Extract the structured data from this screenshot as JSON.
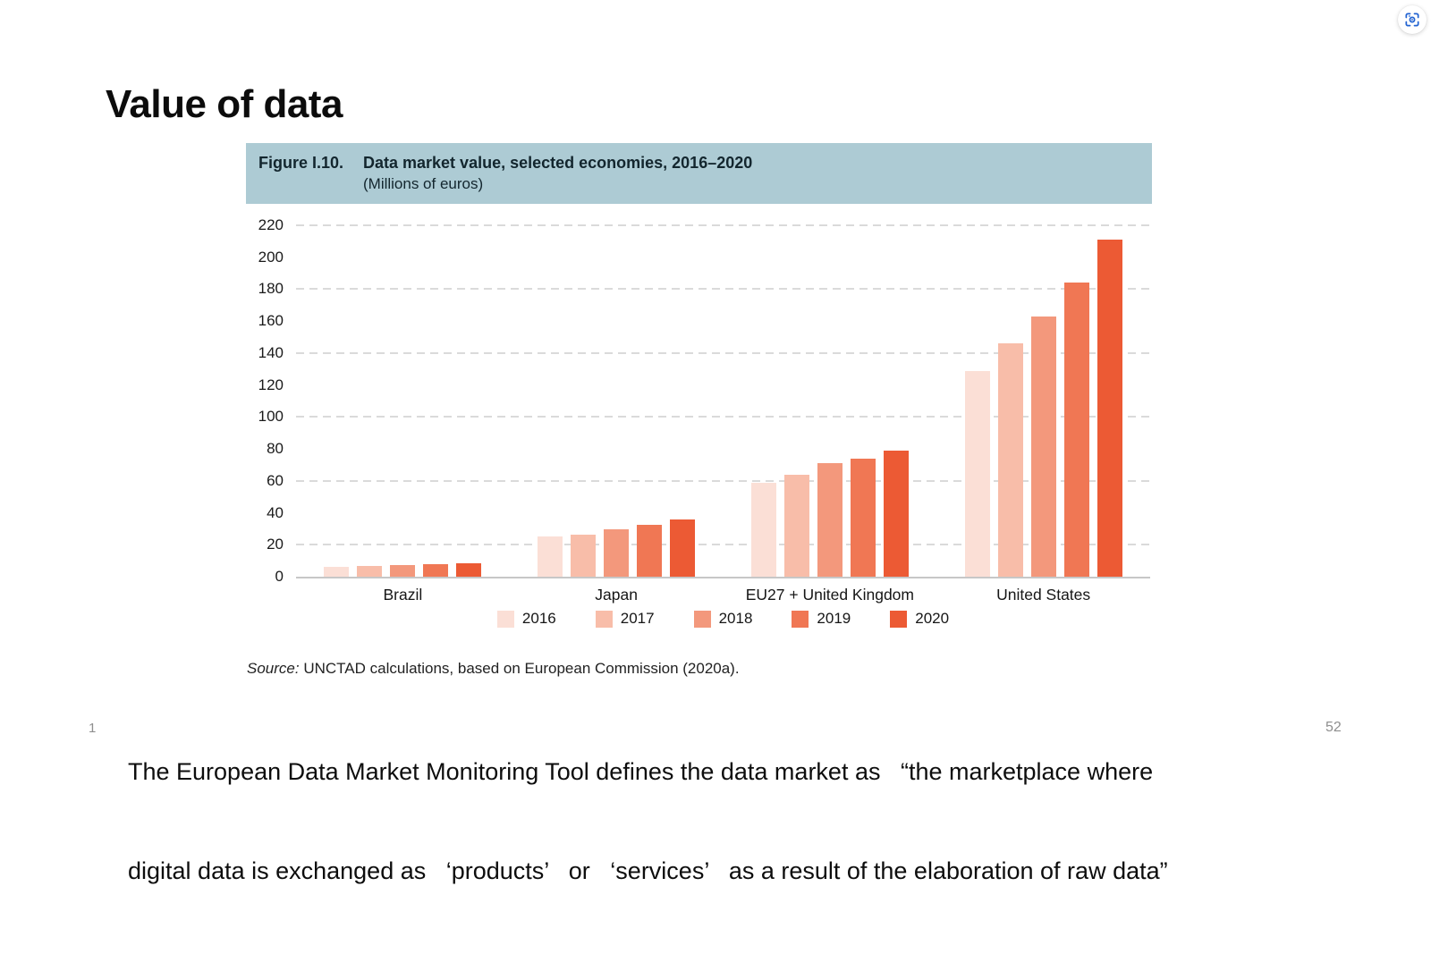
{
  "page": {
    "title": "Value of data",
    "page_number_left": "1",
    "page_number_right": "52",
    "paragraph_line1": "The European Data Market Monitoring Tool defines the data market as   “the marketplace where",
    "paragraph_line2": "digital data is exchanged as   ‘products’   or   ‘services’   as a result of the elaboration of raw data”"
  },
  "figure": {
    "label": "Figure I.10.",
    "title": "Data market value, selected economies, 2016–2020",
    "subtitle": "(Millions of euros)",
    "header_bg": "#adcbd4",
    "source_prefix": "Source:",
    "source_text": " UNCTAD calculations, based on European Commission (2020a)."
  },
  "chart_data": {
    "type": "bar",
    "title": "Data market value, selected economies, 2016–2020",
    "unit_label": "Millions of euros",
    "categories": [
      "Brazil",
      "Japan",
      "EU27 + United Kingdom",
      "United States"
    ],
    "series": [
      {
        "name": "2016",
        "color": "#fbdfd6",
        "values": [
          6,
          25,
          59,
          129
        ]
      },
      {
        "name": "2017",
        "color": "#f8bda9",
        "values": [
          7,
          26.5,
          64,
          146
        ]
      },
      {
        "name": "2018",
        "color": "#f3987c",
        "values": [
          7.5,
          29.5,
          71,
          163
        ]
      },
      {
        "name": "2019",
        "color": "#f07754",
        "values": [
          8,
          32.5,
          74,
          184
        ]
      },
      {
        "name": "2020",
        "color": "#ec5a34",
        "values": [
          8.5,
          36,
          79,
          211
        ]
      }
    ],
    "ylim": [
      0,
      220
    ],
    "yticks": [
      220,
      200,
      180,
      160,
      140,
      120,
      100,
      80,
      60,
      40,
      20,
      0
    ],
    "gridlines": [
      220,
      180,
      140,
      100,
      60,
      20
    ],
    "grid_style": "dashed-horizontal",
    "legend_position": "bottom",
    "axis_color": "#c7c7c7"
  },
  "capture_button": {
    "icon": "screen-capture-viewfinder",
    "color": "#2364d2"
  }
}
